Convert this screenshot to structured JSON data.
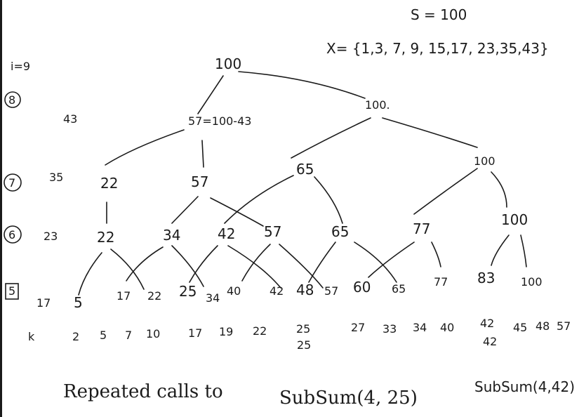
{
  "header": {
    "target": "S = 100",
    "set": "X= {1,3, 7, 9, 15,17, 23,35,43}"
  },
  "levels": [
    {
      "index": "i=9",
      "value": ""
    },
    {
      "index": "8",
      "value": "43"
    },
    {
      "index": "7",
      "value": "35"
    },
    {
      "index": "6",
      "value": "23"
    },
    {
      "index": "5",
      "value": "17"
    },
    {
      "index": "k",
      "value": ""
    }
  ],
  "tree": {
    "root": "100",
    "level8": [
      "57=100-43",
      "100."
    ],
    "level7": [
      "22",
      "57",
      "65",
      "100"
    ],
    "level6": [
      "22",
      "34",
      "42",
      "57",
      "65",
      "77",
      "100"
    ],
    "level5": [
      "5",
      "17",
      "22",
      "25",
      "34",
      "40",
      "42",
      "48",
      "57",
      "60",
      "65",
      "77",
      "83",
      "100"
    ]
  },
  "sorted_sums": {
    "values": [
      "2",
      "5",
      "7",
      "10",
      "17",
      "19",
      "22",
      "25",
      "27",
      "33",
      "34",
      "40",
      "42",
      "45",
      "48",
      "57"
    ],
    "repeats": [
      "25",
      "42"
    ]
  },
  "footer": {
    "note": "Repeated calls to",
    "call1": "SubSum(4, 25)",
    "call2": "SubSum(4,42)"
  }
}
